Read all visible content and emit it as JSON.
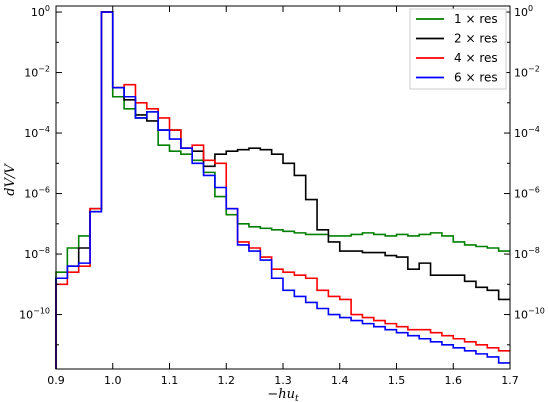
{
  "chart_data": {
    "type": "line",
    "step": true,
    "title": "",
    "xlabel": "−hu",
    "xlabel_sub": "t",
    "ylabel": "dV/V",
    "xlim": [
      0.9,
      1.7
    ],
    "ylim_exp": [
      -11.8,
      0.2
    ],
    "log_y": true,
    "x_ticks": [
      0.9,
      1.0,
      1.1,
      1.2,
      1.3,
      1.4,
      1.5,
      1.6,
      1.7
    ],
    "x_tick_labels": [
      "0.9",
      "1.0",
      "1.1",
      "1.2",
      "1.3",
      "1.4",
      "1.5",
      "1.6",
      "1.7"
    ],
    "y_tick_exps": [
      0,
      -2,
      -4,
      -6,
      -8,
      -10
    ],
    "y_tick_labels": [
      {
        "base": "10",
        "exp": "0"
      },
      {
        "base": "10",
        "exp": "−2"
      },
      {
        "base": "10",
        "exp": "−4"
      },
      {
        "base": "10",
        "exp": "−6"
      },
      {
        "base": "10",
        "exp": "−8"
      },
      {
        "base": "10",
        "exp": "−10"
      }
    ],
    "legend_position": "top-right",
    "bin_edges": [
      0.9,
      0.92,
      0.94,
      0.96,
      0.98,
      1.0,
      1.02,
      1.04,
      1.06,
      1.08,
      1.1,
      1.12,
      1.14,
      1.16,
      1.18,
      1.2,
      1.22,
      1.24,
      1.26,
      1.28,
      1.3,
      1.32,
      1.34,
      1.36,
      1.38,
      1.4,
      1.42,
      1.44,
      1.46,
      1.48,
      1.5,
      1.52,
      1.54,
      1.56,
      1.58,
      1.6,
      1.62,
      1.64,
      1.66,
      1.68,
      1.7
    ],
    "series": [
      {
        "name": "1 × res",
        "color": "#008000",
        "log10_values": [
          -8.6,
          -7.8,
          -7.4,
          -6.6,
          0.0,
          -2.8,
          -3.2,
          -3.5,
          -3.3,
          -4.4,
          -4.6,
          -4.7,
          -4.9,
          -5.3,
          -6.1,
          -6.7,
          -7.0,
          -7.1,
          -7.15,
          -7.2,
          -7.25,
          -7.3,
          -7.35,
          -7.35,
          -7.4,
          -7.4,
          -7.35,
          -7.3,
          -7.35,
          -7.4,
          -7.35,
          -7.4,
          -7.35,
          -7.3,
          -7.4,
          -7.6,
          -7.7,
          -7.75,
          -7.8,
          -7.9
        ]
      },
      {
        "name": "2 × res",
        "color": "#000000",
        "log10_values": [
          -8.8,
          -8.4,
          -7.8,
          -6.5,
          0.0,
          -2.5,
          -2.9,
          -3.4,
          -3.6,
          -3.9,
          -3.9,
          -4.5,
          -4.6,
          -5.1,
          -4.7,
          -4.6,
          -4.55,
          -4.5,
          -4.55,
          -4.7,
          -5.0,
          -5.4,
          -6.2,
          -7.2,
          -7.6,
          -7.9,
          -7.9,
          -7.95,
          -7.95,
          -8.05,
          -8.1,
          -8.5,
          -8.3,
          -8.7,
          -8.7,
          -8.7,
          -8.9,
          -9.1,
          -9.2,
          -9.5
        ]
      },
      {
        "name": "4 × res",
        "color": "#ff0000",
        "log10_values": [
          -9.0,
          -8.6,
          -8.4,
          -6.5,
          0.0,
          -2.5,
          -2.4,
          -3.0,
          -3.2,
          -3.5,
          -3.9,
          -4.5,
          -4.4,
          -4.9,
          -5.0,
          -6.5,
          -7.6,
          -7.8,
          -8.1,
          -8.5,
          -8.6,
          -8.7,
          -8.8,
          -9.2,
          -9.4,
          -9.5,
          -10.0,
          -10.1,
          -10.2,
          -10.3,
          -10.4,
          -10.5,
          -10.5,
          -10.6,
          -10.7,
          -10.8,
          -10.9,
          -11.0,
          -11.1,
          -11.2
        ]
      },
      {
        "name": "6 × res",
        "color": "#0000ff",
        "log10_values": [
          -8.8,
          -8.4,
          -8.3,
          -6.6,
          0.0,
          -2.5,
          -2.8,
          -3.5,
          -3.3,
          -3.9,
          -4.2,
          -4.5,
          -5.0,
          -5.4,
          -5.8,
          -6.5,
          -7.7,
          -7.9,
          -8.2,
          -8.8,
          -9.2,
          -9.4,
          -9.6,
          -9.8,
          -10.0,
          -10.1,
          -10.2,
          -10.3,
          -10.4,
          -10.5,
          -10.6,
          -10.7,
          -10.8,
          -10.9,
          -11.0,
          -11.1,
          -11.2,
          -11.3,
          -11.4,
          -11.6
        ]
      }
    ]
  }
}
